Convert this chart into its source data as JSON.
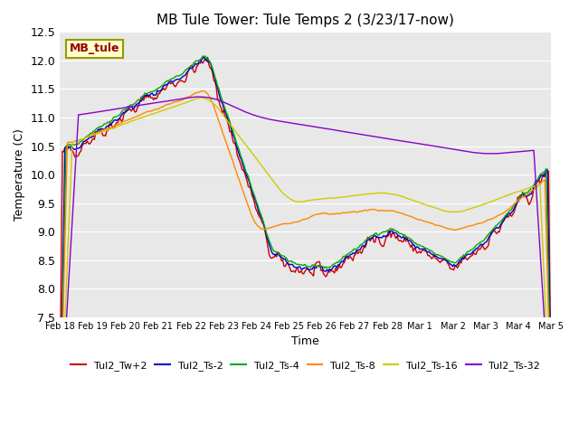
{
  "title": "MB Tule Tower: Tule Temps 2 (3/23/17-now)",
  "xlabel": "Time",
  "ylabel": "Temperature (C)",
  "ylim": [
    7.5,
    12.5
  ],
  "yticks": [
    7.5,
    8.0,
    8.5,
    9.0,
    9.5,
    10.0,
    10.5,
    11.0,
    11.5,
    12.0,
    12.5
  ],
  "bg_color": "#e8e8e8",
  "fig_color": "#ffffff",
  "legend_label": "MB_tule",
  "legend_box_color": "#ffffcc",
  "legend_box_edge": "#999900",
  "legend_text_color": "#990000",
  "series_colors": {
    "Tul2_Tw+2": "#cc0000",
    "Tul2_Ts-2": "#0000cc",
    "Tul2_Ts-4": "#00aa00",
    "Tul2_Ts-8": "#ff8800",
    "Tul2_Ts-16": "#cccc00",
    "Tul2_Ts-32": "#8800cc"
  },
  "x_tick_labels": [
    "Feb 18",
    "Feb 19",
    "Feb 20",
    "Feb 21",
    "Feb 22",
    "Feb 23",
    "Feb 24",
    "Feb 25",
    "Feb 26",
    "Feb 27",
    "Feb 28",
    "Mar 1",
    "Mar 2",
    "Mar 3",
    "Mar 4",
    "Mar 5"
  ],
  "n_points": 400
}
